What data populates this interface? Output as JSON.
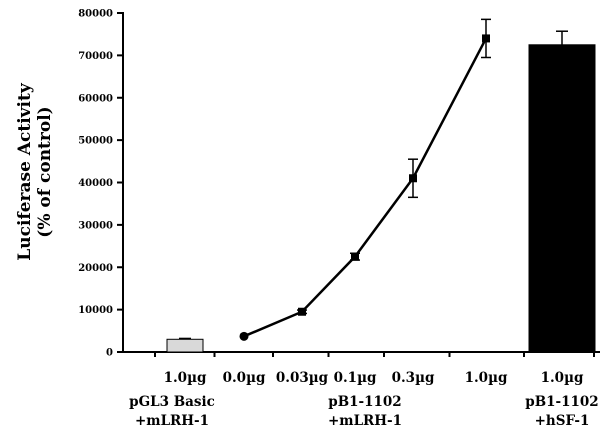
{
  "chart_data": {
    "type": "bar+line",
    "ylabel_lines": [
      "Luciferase Activity",
      "(% of control)"
    ],
    "xlabel": "",
    "ylim": [
      0,
      80000
    ],
    "yticks": [
      0,
      10000,
      20000,
      30000,
      40000,
      50000,
      60000,
      70000,
      80000
    ],
    "categories": [
      "1.0µg",
      "0.0µg",
      "0.03µg",
      "0.1µg",
      "0.3µg",
      "1.0µg",
      "1.0µg"
    ],
    "group_labels": [
      {
        "line1": "pGL3 Basic",
        "line2": "+mLRH-1",
        "from": 0,
        "to": 0
      },
      {
        "line1": "pB1-1102",
        "line2": "+mLRH-1",
        "from": 1,
        "to": 5
      },
      {
        "line1": "pB1-1102",
        "line2": "+hSF-1",
        "from": 6,
        "to": 6
      }
    ],
    "bars": [
      {
        "category_index": 0,
        "value": 3000,
        "error": 200,
        "color": "#d9d9d9"
      },
      {
        "category_index": 6,
        "value": 72500,
        "error": 3200,
        "color": "#000000"
      }
    ],
    "line_series": {
      "category_indices": [
        1,
        2,
        3,
        4,
        5
      ],
      "values": [
        3700,
        9500,
        22500,
        41000,
        74000
      ],
      "errors": [
        200,
        400,
        800,
        4500,
        4500
      ],
      "color": "#000000"
    },
    "grid": false,
    "legend": "none"
  }
}
